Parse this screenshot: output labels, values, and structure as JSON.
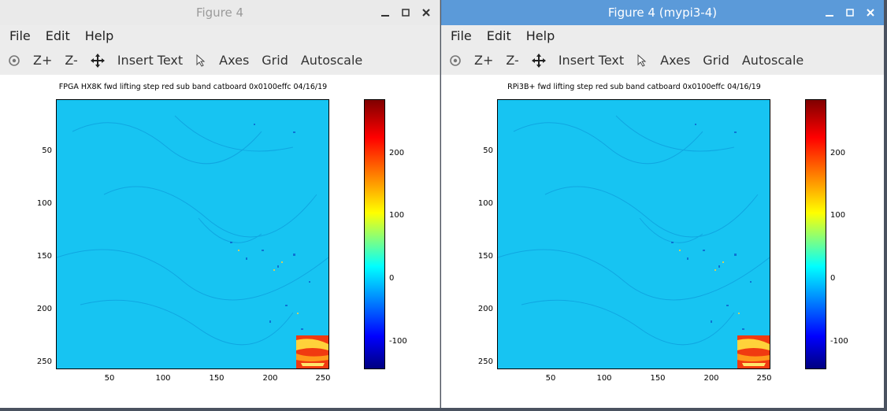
{
  "windows": [
    {
      "title": "Figure 4",
      "state": "inactive",
      "menu": [
        "File",
        "Edit",
        "Help"
      ],
      "toolbar": {
        "zoom_in": "Z+",
        "zoom_out": "Z-",
        "insert_text": "Insert Text",
        "axes": "Axes",
        "grid": "Grid",
        "autoscale": "Autoscale"
      },
      "plot": {
        "title": "FPGA HX8K fwd lifting step red sub band catboard 0x0100effc 04/16/19",
        "y_ticks": [
          "50",
          "100",
          "150",
          "200",
          "250"
        ],
        "x_ticks": [
          "50",
          "100",
          "150",
          "200",
          "250"
        ],
        "colorbar_ticks": [
          "200",
          "100",
          "0",
          "-100"
        ]
      }
    },
    {
      "title": "Figure 4 (mypi3-4)",
      "state": "active",
      "menu": [
        "File",
        "Edit",
        "Help"
      ],
      "toolbar": {
        "zoom_in": "Z+",
        "zoom_out": "Z-",
        "insert_text": "Insert Text",
        "axes": "Axes",
        "grid": "Grid",
        "autoscale": "Autoscale"
      },
      "plot": {
        "title": "RPi3B+ fwd lifting step red sub band catboard 0x0100effc 04/16/19",
        "y_ticks": [
          "50",
          "100",
          "150",
          "200",
          "250"
        ],
        "x_ticks": [
          "50",
          "100",
          "150",
          "200",
          "250"
        ],
        "colorbar_ticks": [
          "200",
          "100",
          "0",
          "-100"
        ]
      }
    }
  ],
  "colors": {
    "active_title": "#5b9ad9",
    "inactive_title": "#eaeaea",
    "image_base": "#17c4f2"
  },
  "icons": [
    "rotate-icon",
    "pan-icon",
    "pointer-icon",
    "minimize-icon",
    "maximize-icon",
    "close-icon"
  ]
}
